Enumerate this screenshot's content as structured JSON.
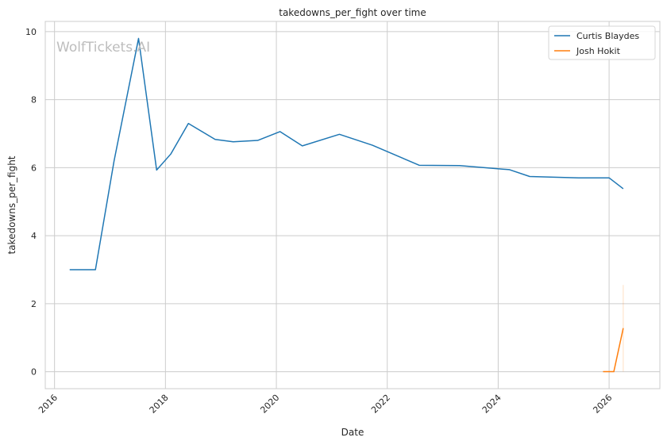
{
  "chart_data": {
    "type": "line",
    "title": "takedowns_per_fight over time",
    "xlabel": "Date",
    "ylabel": "takedowns_per_fight",
    "watermark": "WolfTickets.AI",
    "x_ticks": [
      "2016",
      "2018",
      "2020",
      "2022",
      "2024",
      "2026"
    ],
    "y_ticks": [
      "0",
      "2",
      "4",
      "6",
      "8",
      "10"
    ],
    "xlim": [
      "2015-11-01",
      "2026-12-01"
    ],
    "ylim": [
      -0.5,
      10.3
    ],
    "grid": true,
    "legend_position": "top-right",
    "series": [
      {
        "name": "Curtis Blaydes",
        "color": "#1f77b4",
        "points": [
          [
            "2016-04-10",
            3.0
          ],
          [
            "2016-09-27",
            3.0
          ],
          [
            "2017-01-28",
            6.2
          ],
          [
            "2017-07-08",
            9.8
          ],
          [
            "2017-11-04",
            5.93
          ],
          [
            "2018-02-05",
            6.4
          ],
          [
            "2018-06-01",
            7.3
          ],
          [
            "2018-11-24",
            6.83
          ],
          [
            "2019-03-23",
            6.76
          ],
          [
            "2019-08-31",
            6.8
          ],
          [
            "2020-01-25",
            7.06
          ],
          [
            "2020-06-20",
            6.64
          ],
          [
            "2021-02-20",
            6.98
          ],
          [
            "2021-09-25",
            6.66
          ],
          [
            "2022-07-30",
            6.07
          ],
          [
            "2023-04-22",
            6.06
          ],
          [
            "2024-03-16",
            5.94
          ],
          [
            "2024-07-27",
            5.74
          ],
          [
            "2025-06-14",
            5.7
          ],
          [
            "2026-01-01",
            5.7
          ],
          [
            "2026-04-04",
            5.38
          ]
        ]
      },
      {
        "name": "Josh Hokit",
        "color": "#ff7f0e",
        "points": [
          [
            "2025-11-22",
            0.0
          ],
          [
            "2026-02-01",
            0.0
          ],
          [
            "2026-04-04",
            1.28
          ]
        ],
        "band": {
          "x": "2026-04-04",
          "low": 0.0,
          "high": 2.55
        }
      }
    ]
  }
}
